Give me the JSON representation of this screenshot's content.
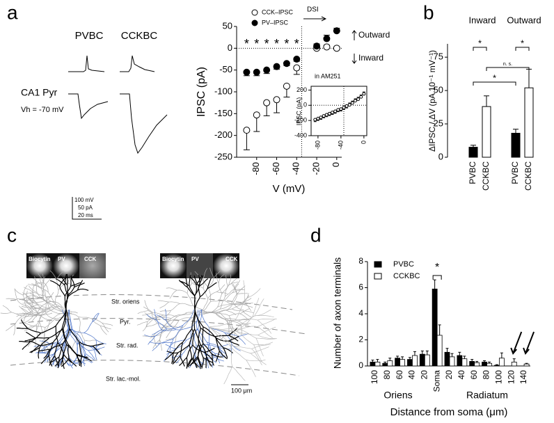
{
  "panel_labels": [
    "a",
    "b",
    "c",
    "d"
  ],
  "traces": {
    "labels": [
      "PVBC",
      "CCKBC"
    ],
    "cell": "CA1 Pyr",
    "holding": "Vh = -70 mV",
    "scale": [
      "100 mV",
      "50 pA",
      "20 ms"
    ]
  },
  "morphology": {
    "images_left": [
      "Biocytin",
      "PV",
      "CCK"
    ],
    "images_right": [
      "Biocytin",
      "PV",
      "CCK"
    ],
    "layers": [
      "Str. oriens",
      "Pyr.",
      "Str. rad.",
      "Str. lac.-mol."
    ],
    "scale": "100 μm"
  },
  "chart_data": [
    {
      "type": "scatter",
      "xlabel": "V (mV)",
      "ylabel": "IPSC (pA)",
      "x": [
        -90,
        -80,
        -70,
        -60,
        -50,
        -40,
        -20,
        -10,
        0
      ],
      "series": [
        {
          "name": "CCK–IPSC",
          "marker": "open",
          "color": "#000000",
          "values": [
            -188,
            -153,
            -125,
            -118,
            -87,
            -45,
            0,
            3,
            0
          ],
          "errors": [
            45,
            38,
            30,
            30,
            25,
            15,
            4,
            4,
            3
          ]
        },
        {
          "name": "PV–IPSC",
          "marker": "filled",
          "color": "#000000",
          "values": [
            -55,
            -55,
            -50,
            -42,
            -35,
            -25,
            5,
            22,
            40
          ],
          "errors": [
            8,
            8,
            8,
            6,
            5,
            5,
            5,
            8,
            6
          ]
        }
      ],
      "xlim": [
        -100,
        5
      ],
      "ylim": [
        -250,
        50
      ],
      "xticks": [
        -80,
        -60,
        -40,
        -20,
        0
      ],
      "yticks": [
        -250,
        -200,
        -150,
        -100,
        -50,
        0,
        50
      ],
      "reference_lines": {
        "x": -35,
        "y": 0
      },
      "annotations": {
        "dsi": "DSI",
        "outward": "Outward",
        "inward": "Inward",
        "stars": [
          "*",
          "*",
          "*",
          "*",
          "*",
          "*"
        ]
      }
    },
    {
      "type": "scatter",
      "title": "in AM251",
      "ylabel": "IPSC (pA)",
      "x": [
        -85,
        -80,
        -75,
        -70,
        -65,
        -60,
        -55,
        -50,
        -45,
        -40,
        -35,
        -30,
        -25,
        -20,
        -15,
        -10,
        -5,
        0
      ],
      "series": [
        {
          "marker": "open",
          "color": "#000000",
          "values": [
            -190,
            -175,
            -160,
            -140,
            -125,
            -110,
            -95,
            -80,
            -60,
            -50,
            -30,
            -10,
            5,
            30,
            60,
            80,
            110,
            150
          ],
          "errors": [
            25,
            25,
            25,
            25,
            25,
            25,
            25,
            25,
            25,
            25,
            25,
            25,
            25,
            25,
            25,
            25,
            25,
            25
          ]
        }
      ],
      "xlim": [
        -92,
        5
      ],
      "ylim": [
        -400,
        250
      ],
      "xticks": [
        -80,
        -40,
        0
      ],
      "yticks": [
        -400,
        -200,
        0,
        200
      ],
      "reference_lines": {
        "x": -35,
        "y": 0
      }
    },
    {
      "type": "bar",
      "ylabel": "ΔIPSC / ΔV (pA 10⁻¹ mV⁻¹)",
      "groups": [
        "Inward",
        "Outward"
      ],
      "categories": [
        "PVBC",
        "CCKBC",
        "PVBC",
        "CCKBC"
      ],
      "values": [
        7.5,
        38,
        18,
        52
      ],
      "errors": [
        1.5,
        8,
        3,
        14
      ],
      "colors": [
        "#000000",
        "#ffffff",
        "#000000",
        "#ffffff"
      ],
      "ylim": [
        0,
        85
      ],
      "yticks": [
        0,
        25,
        50,
        75
      ],
      "significance": [
        "*",
        "*",
        "n. s.",
        "*"
      ]
    },
    {
      "type": "grouped_bar",
      "xlabel": "Distance from soma (μm)",
      "ylabel": "Number of axon terminals",
      "regions": [
        "Oriens",
        "Radiatum"
      ],
      "categories": [
        "100",
        "80",
        "60",
        "40",
        "20",
        "Soma",
        "20",
        "40",
        "60",
        "80",
        "100",
        "120",
        "140"
      ],
      "series": [
        {
          "name": "PVBC",
          "color": "#000000",
          "values": [
            0.3,
            0.2,
            0.6,
            0.5,
            0.9,
            5.9,
            1.05,
            0.8,
            0.35,
            0.3,
            0.05,
            0,
            0
          ],
          "errors": [
            0.15,
            0.1,
            0.15,
            0.15,
            0.25,
            0.7,
            0.3,
            0.25,
            0.15,
            0.1,
            0.05,
            0,
            0
          ]
        },
        {
          "name": "CCKBC",
          "color": "#ffffff",
          "values": [
            0.3,
            0.4,
            0.5,
            0.8,
            0.85,
            2.35,
            0.7,
            0.55,
            0.25,
            0.2,
            0.6,
            0.3,
            0.15
          ],
          "errors": [
            0.2,
            0.2,
            0.2,
            0.3,
            0.3,
            0.8,
            0.25,
            0.2,
            0.1,
            0.1,
            0.4,
            0.25,
            0.05
          ]
        }
      ],
      "ylim": [
        0,
        8
      ],
      "yticks": [
        0,
        2,
        4,
        6,
        8
      ],
      "significance": "*"
    }
  ]
}
